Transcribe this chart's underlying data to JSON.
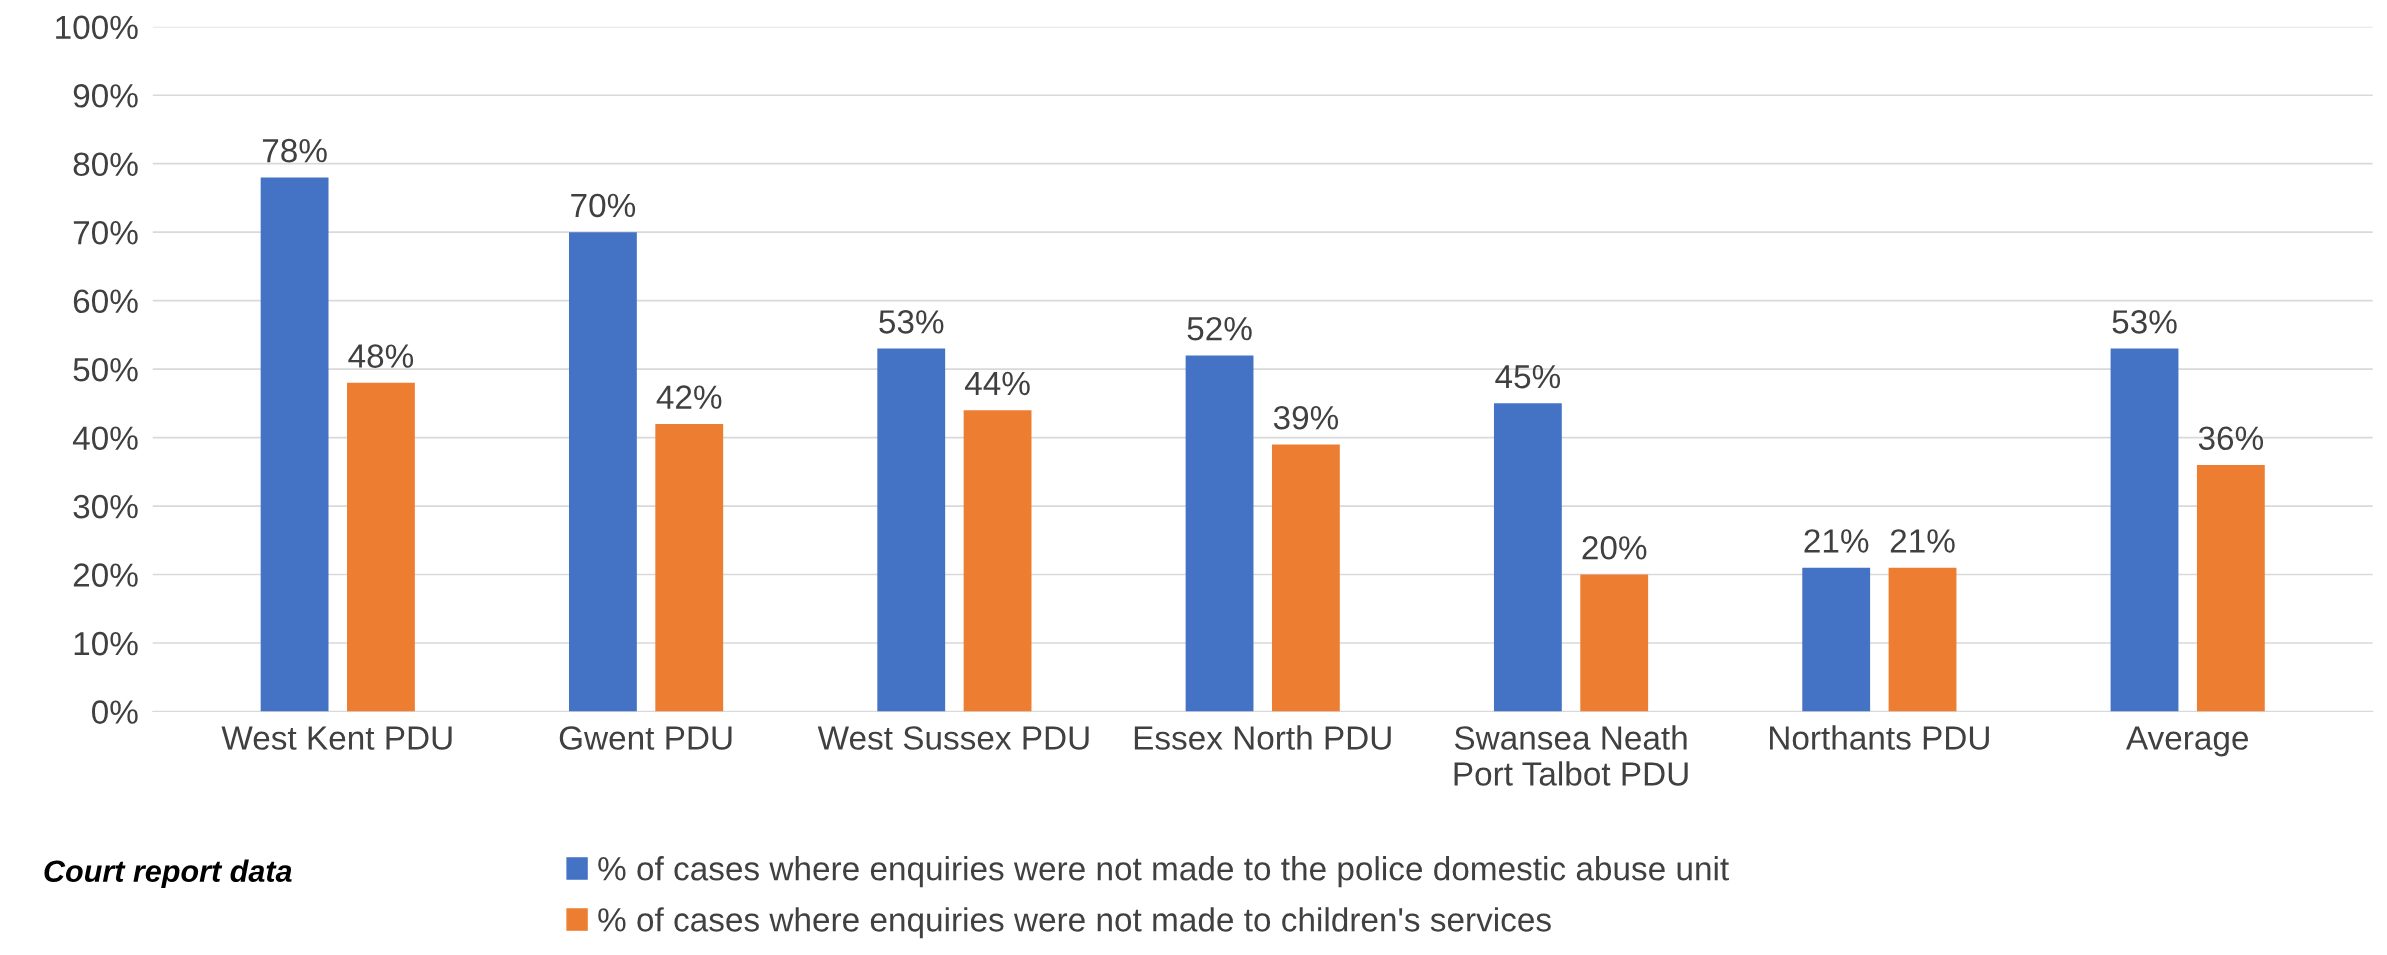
{
  "chart_data": {
    "type": "bar",
    "categories": [
      "West Kent PDU",
      "Gwent PDU",
      "West Sussex PDU",
      "Essex North PDU",
      "Swansea Neath\nPort Talbot PDU",
      "Northants PDU",
      "Average"
    ],
    "series": [
      {
        "name": "% of cases where enquiries were not made to the police domestic abuse unit",
        "color": "#4472c4",
        "values": [
          78,
          70,
          53,
          52,
          45,
          21,
          53
        ],
        "value_labels": [
          "78%",
          "70%",
          "53%",
          "52%",
          "45%",
          "21%",
          "53%"
        ]
      },
      {
        "name": "% of cases where enquiries were not made to children's services",
        "color": "#ed7d31",
        "values": [
          48,
          42,
          44,
          39,
          20,
          21,
          36
        ],
        "value_labels": [
          "48%",
          "42%",
          "44%",
          "39%",
          "20%",
          "21%",
          "36%"
        ]
      }
    ],
    "ylim": [
      0,
      100
    ],
    "yticks": [
      {
        "value": 0,
        "label": "0%"
      },
      {
        "value": 10,
        "label": "10%"
      },
      {
        "value": 20,
        "label": "20%"
      },
      {
        "value": 30,
        "label": "30%"
      },
      {
        "value": 40,
        "label": "40%"
      },
      {
        "value": 50,
        "label": "50%"
      },
      {
        "value": 60,
        "label": "60%"
      },
      {
        "value": 70,
        "label": "70%"
      },
      {
        "value": 80,
        "label": "80%"
      },
      {
        "value": 90,
        "label": "90%"
      },
      {
        "value": 100,
        "label": "100%"
      }
    ],
    "grid": "y",
    "legend": "bottom",
    "annotations": [
      "Court report data"
    ]
  }
}
